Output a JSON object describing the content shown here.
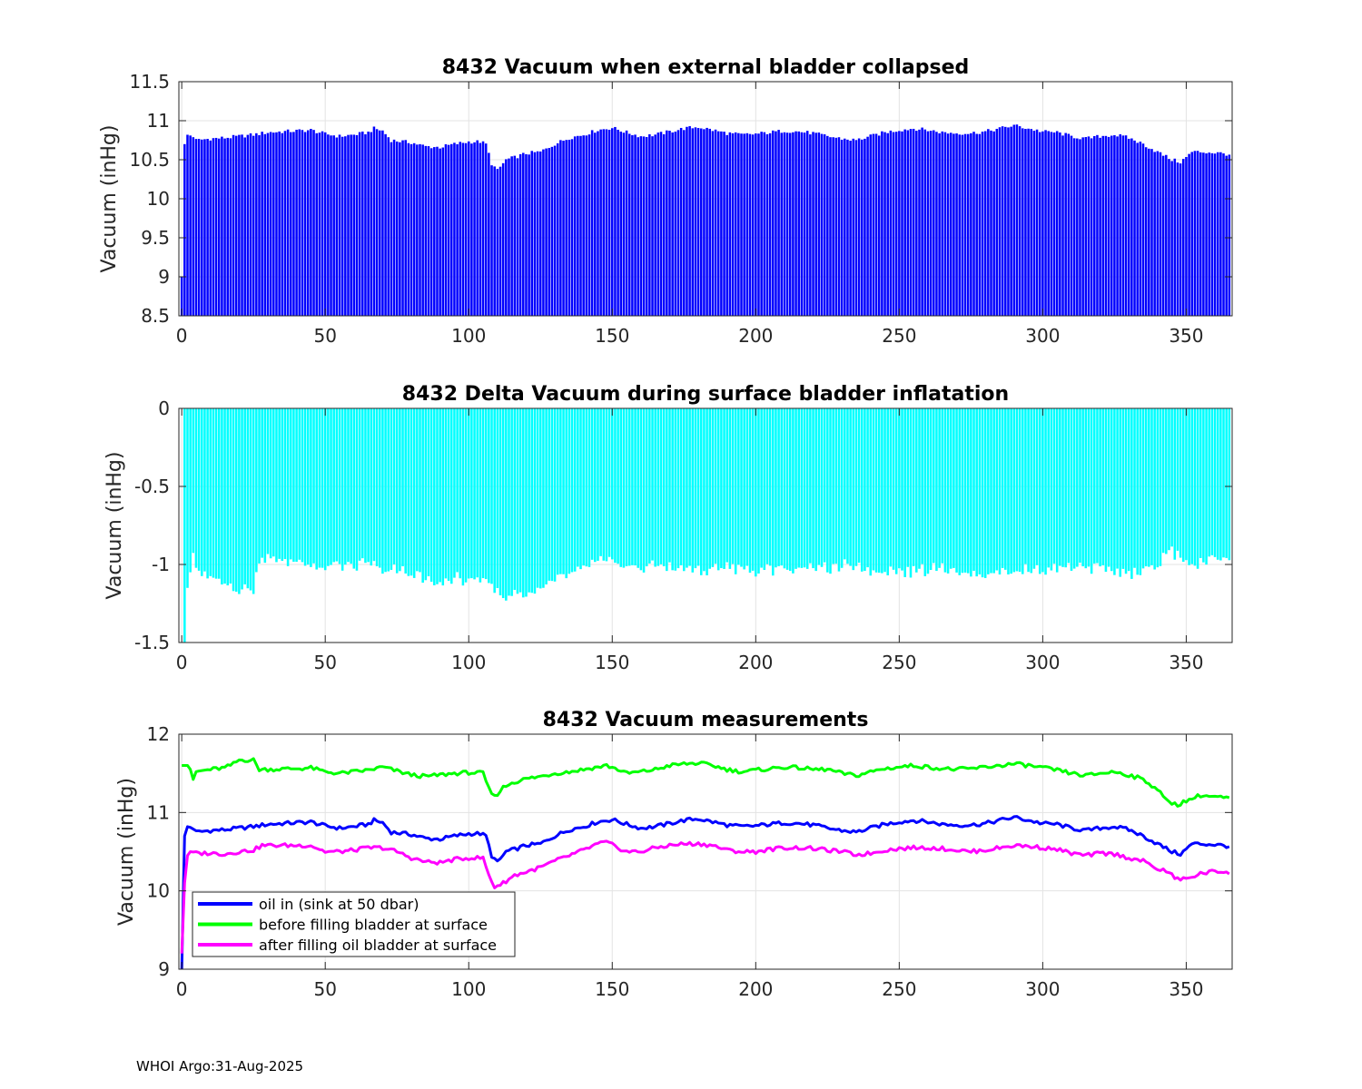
{
  "footer": "WHOI Argo:31-Aug-2025",
  "chart_data": [
    {
      "type": "bar",
      "title": "8432 Vacuum when external bladder collapsed",
      "xlabel": "",
      "ylabel": "Vacuum (inHg)",
      "xlim": [
        -1,
        366
      ],
      "ylim": [
        8.5,
        11.5
      ],
      "xticks": [
        "0",
        "50",
        "100",
        "150",
        "200",
        "250",
        "300",
        "350"
      ],
      "yticks": [
        "8.5",
        "9",
        "9.5",
        "10",
        "10.5",
        "11",
        "11.5"
      ],
      "grid": true,
      "color": "#0000ff",
      "series_ref": "oil_in",
      "note": "one bar per profile, value = oil-in vacuum"
    },
    {
      "type": "bar",
      "title": "8432 Delta Vacuum during surface bladder inflatation",
      "xlabel": "",
      "ylabel": "Vacuum (inHg)",
      "xlim": [
        -1,
        366
      ],
      "ylim": [
        -1.5,
        0
      ],
      "xticks": [
        "0",
        "50",
        "100",
        "150",
        "200",
        "250",
        "300",
        "350"
      ],
      "yticks": [
        "-1.5",
        "-1",
        "-0.5",
        "0"
      ],
      "grid": true,
      "color": "#00ffff",
      "series_ref": "delta",
      "note": "delta = after filling - before filling"
    },
    {
      "type": "line",
      "title": "8432 Vacuum measurements",
      "xlabel": "",
      "ylabel": "Vacuum (inHg)",
      "xlim": [
        -1,
        366
      ],
      "ylim": [
        9,
        12
      ],
      "xticks": [
        "0",
        "50",
        "100",
        "150",
        "200",
        "250",
        "300",
        "350"
      ],
      "yticks": [
        "9",
        "10",
        "11",
        "12"
      ],
      "grid": true,
      "legend_position": "bottom-left",
      "series": [
        {
          "name": "oil in (sink at 50 dbar)",
          "color": "#0000ff",
          "key": [
            [
              0,
              9.0
            ],
            [
              1,
              10.7
            ],
            [
              2,
              10.82
            ],
            [
              4,
              10.8
            ],
            [
              5,
              10.75
            ],
            [
              10,
              10.77
            ],
            [
              15,
              10.78
            ],
            [
              20,
              10.8
            ],
            [
              25,
              10.82
            ],
            [
              30,
              10.85
            ],
            [
              40,
              10.87
            ],
            [
              45,
              10.88
            ],
            [
              50,
              10.83
            ],
            [
              55,
              10.8
            ],
            [
              60,
              10.82
            ],
            [
              65,
              10.85
            ],
            [
              67,
              10.9
            ],
            [
              70,
              10.87
            ],
            [
              73,
              10.75
            ],
            [
              80,
              10.72
            ],
            [
              85,
              10.67
            ],
            [
              90,
              10.66
            ],
            [
              95,
              10.7
            ],
            [
              100,
              10.73
            ],
            [
              104,
              10.73
            ],
            [
              106,
              10.7
            ],
            [
              108,
              10.45
            ],
            [
              110,
              10.36
            ],
            [
              113,
              10.5
            ],
            [
              116,
              10.53
            ],
            [
              120,
              10.58
            ],
            [
              125,
              10.6
            ],
            [
              130,
              10.7
            ],
            [
              135,
              10.78
            ],
            [
              140,
              10.82
            ],
            [
              145,
              10.88
            ],
            [
              150,
              10.91
            ],
            [
              155,
              10.85
            ],
            [
              160,
              10.8
            ],
            [
              165,
              10.82
            ],
            [
              170,
              10.86
            ],
            [
              175,
              10.9
            ],
            [
              180,
              10.92
            ],
            [
              185,
              10.88
            ],
            [
              190,
              10.84
            ],
            [
              195,
              10.82
            ],
            [
              200,
              10.83
            ],
            [
              205,
              10.85
            ],
            [
              210,
              10.87
            ],
            [
              215,
              10.86
            ],
            [
              220,
              10.84
            ],
            [
              225,
              10.8
            ],
            [
              230,
              10.77
            ],
            [
              235,
              10.75
            ],
            [
              240,
              10.8
            ],
            [
              245,
              10.85
            ],
            [
              250,
              10.88
            ],
            [
              255,
              10.9
            ],
            [
              260,
              10.88
            ],
            [
              265,
              10.85
            ],
            [
              270,
              10.84
            ],
            [
              275,
              10.84
            ],
            [
              280,
              10.86
            ],
            [
              285,
              10.9
            ],
            [
              290,
              10.94
            ],
            [
              295,
              10.9
            ],
            [
              300,
              10.86
            ],
            [
              305,
              10.85
            ],
            [
              310,
              10.8
            ],
            [
              315,
              10.77
            ],
            [
              320,
              10.8
            ],
            [
              325,
              10.82
            ],
            [
              330,
              10.78
            ],
            [
              335,
              10.7
            ],
            [
              340,
              10.6
            ],
            [
              345,
              10.5
            ],
            [
              348,
              10.47
            ],
            [
              350,
              10.53
            ],
            [
              352,
              10.6
            ],
            [
              355,
              10.6
            ],
            [
              360,
              10.59
            ],
            [
              365,
              10.57
            ]
          ]
        },
        {
          "name": "before filling bladder at surface",
          "color": "#00ff00",
          "key": [
            [
              1,
              11.6
            ],
            [
              2,
              11.6
            ],
            [
              3,
              11.55
            ],
            [
              4,
              11.4
            ],
            [
              5,
              11.52
            ],
            [
              10,
              11.55
            ],
            [
              15,
              11.57
            ],
            [
              18,
              11.62
            ],
            [
              20,
              11.67
            ],
            [
              25,
              11.67
            ],
            [
              27,
              11.55
            ],
            [
              30,
              11.55
            ],
            [
              40,
              11.56
            ],
            [
              45,
              11.57
            ],
            [
              50,
              11.52
            ],
            [
              55,
              11.5
            ],
            [
              60,
              11.52
            ],
            [
              65,
              11.54
            ],
            [
              70,
              11.58
            ],
            [
              75,
              11.53
            ],
            [
              80,
              11.48
            ],
            [
              85,
              11.46
            ],
            [
              90,
              11.48
            ],
            [
              95,
              11.5
            ],
            [
              100,
              11.51
            ],
            [
              105,
              11.5
            ],
            [
              107,
              11.3
            ],
            [
              109,
              11.2
            ],
            [
              112,
              11.32
            ],
            [
              115,
              11.38
            ],
            [
              120,
              11.43
            ],
            [
              125,
              11.46
            ],
            [
              130,
              11.5
            ],
            [
              135,
              11.52
            ],
            [
              140,
              11.55
            ],
            [
              145,
              11.58
            ],
            [
              148,
              11.6
            ],
            [
              152,
              11.55
            ],
            [
              155,
              11.5
            ],
            [
              160,
              11.52
            ],
            [
              165,
              11.55
            ],
            [
              170,
              11.6
            ],
            [
              175,
              11.62
            ],
            [
              180,
              11.63
            ],
            [
              185,
              11.6
            ],
            [
              190,
              11.55
            ],
            [
              195,
              11.52
            ],
            [
              200,
              11.54
            ],
            [
              205,
              11.56
            ],
            [
              210,
              11.58
            ],
            [
              215,
              11.57
            ],
            [
              220,
              11.55
            ],
            [
              225,
              11.55
            ],
            [
              230,
              11.5
            ],
            [
              235,
              11.47
            ],
            [
              240,
              11.52
            ],
            [
              245,
              11.56
            ],
            [
              250,
              11.58
            ],
            [
              255,
              11.6
            ],
            [
              260,
              11.58
            ],
            [
              265,
              11.56
            ],
            [
              270,
              11.55
            ],
            [
              275,
              11.56
            ],
            [
              280,
              11.58
            ],
            [
              285,
              11.6
            ],
            [
              290,
              11.62
            ],
            [
              295,
              11.6
            ],
            [
              300,
              11.57
            ],
            [
              305,
              11.54
            ],
            [
              310,
              11.5
            ],
            [
              315,
              11.47
            ],
            [
              320,
              11.5
            ],
            [
              325,
              11.52
            ],
            [
              330,
              11.48
            ],
            [
              335,
              11.42
            ],
            [
              340,
              11.3
            ],
            [
              343,
              11.15
            ],
            [
              347,
              11.1
            ],
            [
              350,
              11.15
            ],
            [
              355,
              11.22
            ],
            [
              360,
              11.2
            ],
            [
              365,
              11.18
            ]
          ]
        },
        {
          "name": "after filling oil bladder at surface",
          "color": "#ff00ff",
          "key": [
            [
              0,
              9.2
            ],
            [
              1,
              10.1
            ],
            [
              2,
              10.45
            ],
            [
              3,
              10.5
            ],
            [
              5,
              10.48
            ],
            [
              10,
              10.48
            ],
            [
              15,
              10.47
            ],
            [
              20,
              10.5
            ],
            [
              25,
              10.52
            ],
            [
              28,
              10.58
            ],
            [
              35,
              10.58
            ],
            [
              40,
              10.58
            ],
            [
              45,
              10.58
            ],
            [
              50,
              10.5
            ],
            [
              55,
              10.5
            ],
            [
              60,
              10.52
            ],
            [
              65,
              10.55
            ],
            [
              70,
              10.55
            ],
            [
              75,
              10.5
            ],
            [
              80,
              10.42
            ],
            [
              85,
              10.37
            ],
            [
              90,
              10.36
            ],
            [
              95,
              10.4
            ],
            [
              100,
              10.42
            ],
            [
              105,
              10.42
            ],
            [
              107,
              10.2
            ],
            [
              109,
              10.05
            ],
            [
              112,
              10.1
            ],
            [
              116,
              10.2
            ],
            [
              120,
              10.24
            ],
            [
              125,
              10.3
            ],
            [
              130,
              10.38
            ],
            [
              135,
              10.45
            ],
            [
              140,
              10.52
            ],
            [
              145,
              10.6
            ],
            [
              148,
              10.62
            ],
            [
              152,
              10.55
            ],
            [
              155,
              10.5
            ],
            [
              160,
              10.5
            ],
            [
              165,
              10.55
            ],
            [
              170,
              10.58
            ],
            [
              175,
              10.6
            ],
            [
              180,
              10.6
            ],
            [
              185,
              10.58
            ],
            [
              190,
              10.52
            ],
            [
              195,
              10.5
            ],
            [
              200,
              10.5
            ],
            [
              205,
              10.53
            ],
            [
              210,
              10.55
            ],
            [
              215,
              10.55
            ],
            [
              220,
              10.54
            ],
            [
              225,
              10.52
            ],
            [
              230,
              10.5
            ],
            [
              235,
              10.46
            ],
            [
              240,
              10.48
            ],
            [
              245,
              10.52
            ],
            [
              250,
              10.54
            ],
            [
              255,
              10.55
            ],
            [
              260,
              10.55
            ],
            [
              265,
              10.54
            ],
            [
              270,
              10.52
            ],
            [
              275,
              10.5
            ],
            [
              280,
              10.52
            ],
            [
              285,
              10.55
            ],
            [
              290,
              10.58
            ],
            [
              295,
              10.57
            ],
            [
              300,
              10.55
            ],
            [
              305,
              10.53
            ],
            [
              310,
              10.48
            ],
            [
              315,
              10.45
            ],
            [
              320,
              10.48
            ],
            [
              325,
              10.47
            ],
            [
              330,
              10.42
            ],
            [
              335,
              10.38
            ],
            [
              340,
              10.28
            ],
            [
              343,
              10.25
            ],
            [
              347,
              10.15
            ],
            [
              350,
              10.15
            ],
            [
              355,
              10.22
            ],
            [
              360,
              10.25
            ],
            [
              365,
              10.24
            ]
          ]
        }
      ]
    }
  ]
}
